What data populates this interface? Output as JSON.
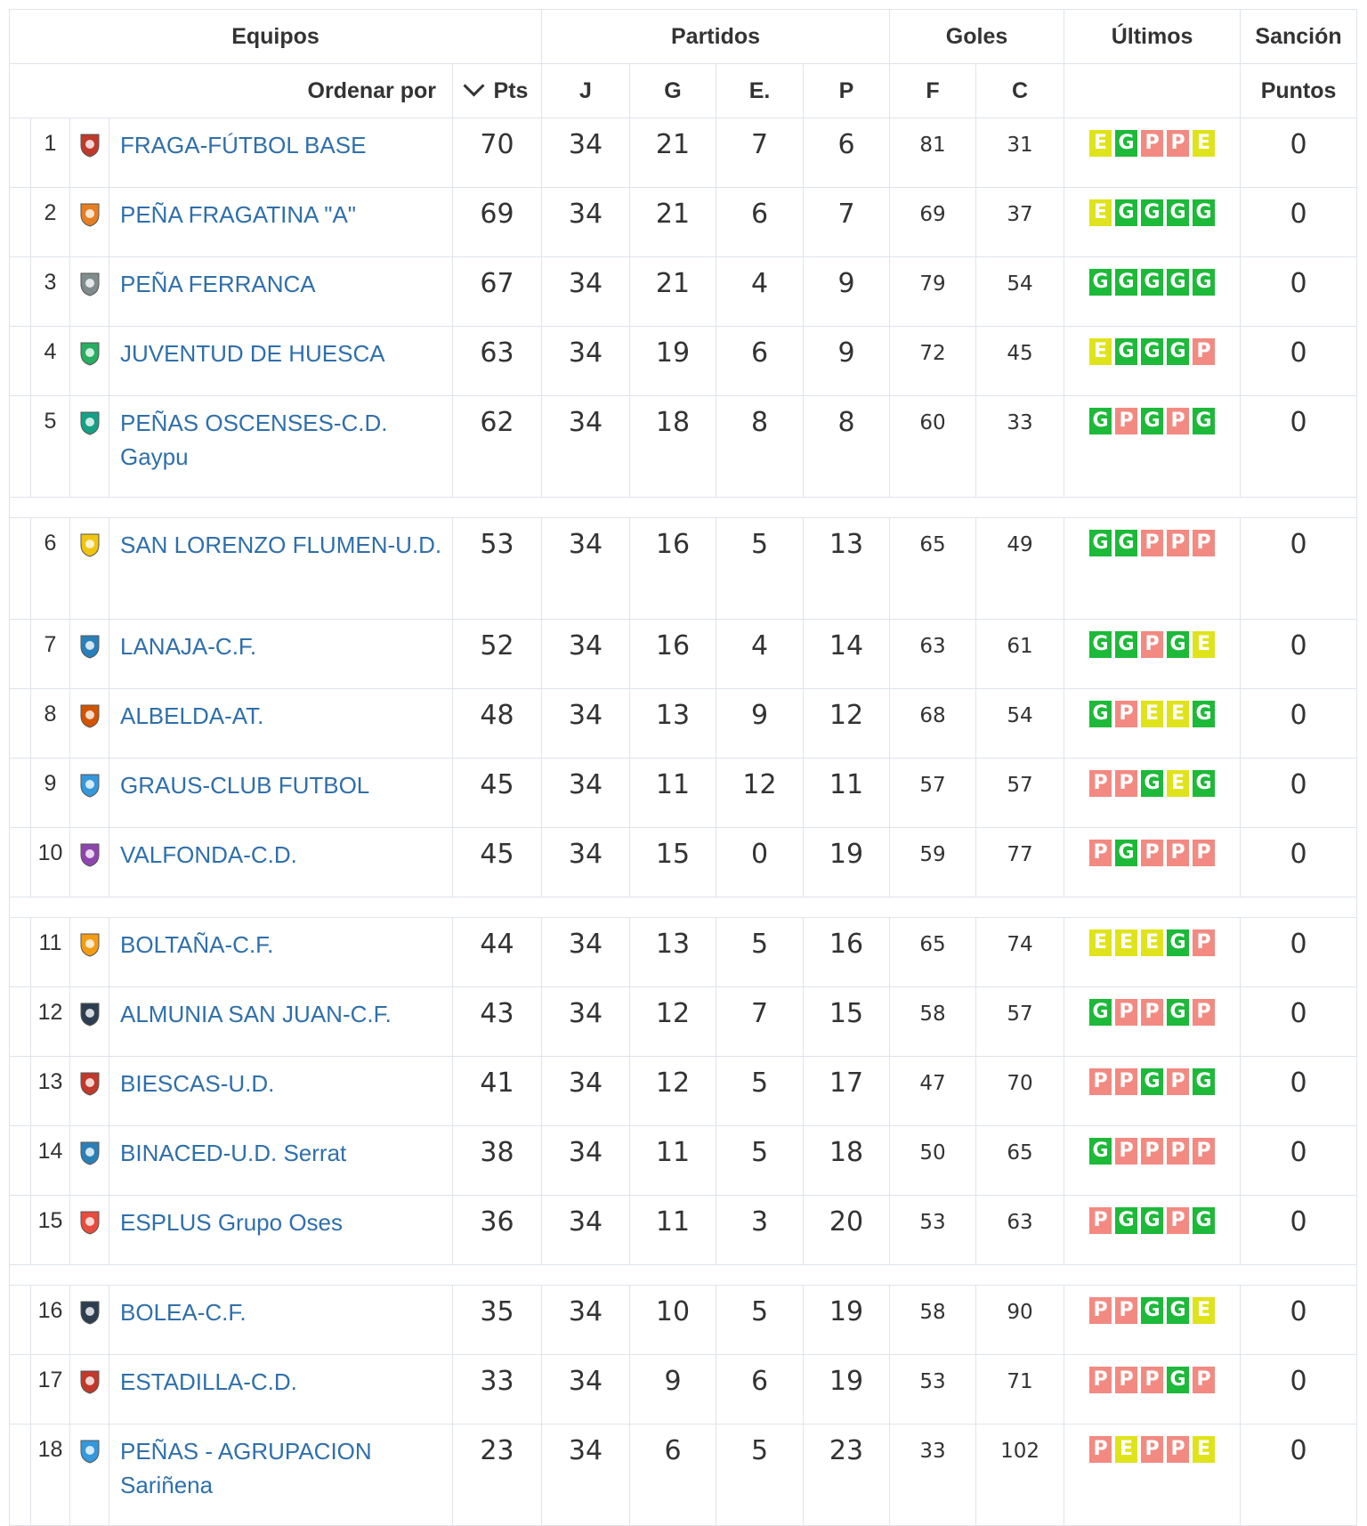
{
  "header": {
    "equipos": "Equipos",
    "partidos": "Partidos",
    "goles": "Goles",
    "ultimos": "Últimos",
    "sancion": "Sanción",
    "ordenar_por": "Ordenar por",
    "pts": "Pts",
    "j": "J",
    "g": "G",
    "e": "E.",
    "p": "P",
    "f": "F",
    "c": "C",
    "puntos": "Puntos"
  },
  "colors": {
    "win": "#1db939",
    "loss": "#f28a82",
    "draw": "#dfe31b",
    "link": "#2f6fab"
  },
  "teams": [
    {
      "rank": "1",
      "name": "FRAGA-FÚTBOL BASE",
      "pts": "70",
      "j": "34",
      "g": "21",
      "e": "7",
      "p": "6",
      "f": "81",
      "c": "31",
      "last": [
        "E",
        "G",
        "P",
        "P",
        "E"
      ],
      "sancion": "0",
      "crest": "fraga-crest-icon"
    },
    {
      "rank": "2",
      "name": "PEÑA FRAGATINA \"A\"",
      "pts": "69",
      "j": "34",
      "g": "21",
      "e": "6",
      "p": "7",
      "f": "69",
      "c": "37",
      "last": [
        "E",
        "G",
        "G",
        "G",
        "G"
      ],
      "sancion": "0",
      "crest": "fragatina-crest-icon"
    },
    {
      "rank": "3",
      "name": "PEÑA FERRANCA",
      "pts": "67",
      "j": "34",
      "g": "21",
      "e": "4",
      "p": "9",
      "f": "79",
      "c": "54",
      "last": [
        "G",
        "G",
        "G",
        "G",
        "G"
      ],
      "sancion": "0",
      "crest": "ferranca-crest-icon"
    },
    {
      "rank": "4",
      "name": "JUVENTUD DE HUESCA",
      "pts": "63",
      "j": "34",
      "g": "19",
      "e": "6",
      "p": "9",
      "f": "72",
      "c": "45",
      "last": [
        "E",
        "G",
        "G",
        "G",
        "P"
      ],
      "sancion": "0",
      "crest": "juventud-crest-icon"
    },
    {
      "rank": "5",
      "name": "PEÑAS OSCENSES-C.D. Gaypu",
      "pts": "62",
      "j": "34",
      "g": "18",
      "e": "8",
      "p": "8",
      "f": "60",
      "c": "33",
      "last": [
        "G",
        "P",
        "G",
        "P",
        "G"
      ],
      "sancion": "0",
      "crest": "oscenses-crest-icon"
    },
    {
      "rank": "6",
      "name": "SAN LORENZO FLUMEN-U.D.",
      "pts": "53",
      "j": "34",
      "g": "16",
      "e": "5",
      "p": "13",
      "f": "65",
      "c": "49",
      "last": [
        "G",
        "G",
        "P",
        "P",
        "P"
      ],
      "sancion": "0",
      "crest": "sanlorenzo-crest-icon"
    },
    {
      "rank": "7",
      "name": "LANAJA-C.F.",
      "pts": "52",
      "j": "34",
      "g": "16",
      "e": "4",
      "p": "14",
      "f": "63",
      "c": "61",
      "last": [
        "G",
        "G",
        "P",
        "G",
        "E"
      ],
      "sancion": "0",
      "crest": "lanaja-crest-icon"
    },
    {
      "rank": "8",
      "name": "ALBELDA-AT.",
      "pts": "48",
      "j": "34",
      "g": "13",
      "e": "9",
      "p": "12",
      "f": "68",
      "c": "54",
      "last": [
        "G",
        "P",
        "E",
        "E",
        "G"
      ],
      "sancion": "0",
      "crest": "albelda-crest-icon"
    },
    {
      "rank": "9",
      "name": "GRAUS-CLUB FUTBOL",
      "pts": "45",
      "j": "34",
      "g": "11",
      "e": "12",
      "p": "11",
      "f": "57",
      "c": "57",
      "last": [
        "P",
        "P",
        "G",
        "E",
        "G"
      ],
      "sancion": "0",
      "crest": "graus-crest-icon"
    },
    {
      "rank": "10",
      "name": "VALFONDA-C.D.",
      "pts": "45",
      "j": "34",
      "g": "15",
      "e": "0",
      "p": "19",
      "f": "59",
      "c": "77",
      "last": [
        "P",
        "G",
        "P",
        "P",
        "P"
      ],
      "sancion": "0",
      "crest": "valfonda-crest-icon"
    },
    {
      "rank": "11",
      "name": "BOLTAÑA-C.F.",
      "pts": "44",
      "j": "34",
      "g": "13",
      "e": "5",
      "p": "16",
      "f": "65",
      "c": "74",
      "last": [
        "E",
        "E",
        "E",
        "G",
        "P"
      ],
      "sancion": "0",
      "crest": "boltana-crest-icon"
    },
    {
      "rank": "12",
      "name": "ALMUNIA SAN JUAN-C.F.",
      "pts": "43",
      "j": "34",
      "g": "12",
      "e": "7",
      "p": "15",
      "f": "58",
      "c": "57",
      "last": [
        "G",
        "P",
        "P",
        "G",
        "P"
      ],
      "sancion": "0",
      "crest": "almunia-crest-icon"
    },
    {
      "rank": "13",
      "name": "BIESCAS-U.D.",
      "pts": "41",
      "j": "34",
      "g": "12",
      "e": "5",
      "p": "17",
      "f": "47",
      "c": "70",
      "last": [
        "P",
        "P",
        "G",
        "P",
        "G"
      ],
      "sancion": "0",
      "crest": "biescas-crest-icon"
    },
    {
      "rank": "14",
      "name": "BINACED-U.D. Serrat",
      "pts": "38",
      "j": "34",
      "g": "11",
      "e": "5",
      "p": "18",
      "f": "50",
      "c": "65",
      "last": [
        "G",
        "P",
        "P",
        "P",
        "P"
      ],
      "sancion": "0",
      "crest": "binaced-crest-icon"
    },
    {
      "rank": "15",
      "name": "ESPLUS Grupo Oses",
      "pts": "36",
      "j": "34",
      "g": "11",
      "e": "3",
      "p": "20",
      "f": "53",
      "c": "63",
      "last": [
        "P",
        "G",
        "G",
        "P",
        "G"
      ],
      "sancion": "0",
      "crest": "esplus-crest-icon"
    },
    {
      "rank": "16",
      "name": "BOLEA-C.F.",
      "pts": "35",
      "j": "34",
      "g": "10",
      "e": "5",
      "p": "19",
      "f": "58",
      "c": "90",
      "last": [
        "P",
        "P",
        "G",
        "G",
        "E"
      ],
      "sancion": "0",
      "crest": "bolea-crest-icon"
    },
    {
      "rank": "17",
      "name": "ESTADILLA-C.D.",
      "pts": "33",
      "j": "34",
      "g": "9",
      "e": "6",
      "p": "19",
      "f": "53",
      "c": "71",
      "last": [
        "P",
        "P",
        "P",
        "G",
        "P"
      ],
      "sancion": "0",
      "crest": "estadilla-crest-icon"
    },
    {
      "rank": "18",
      "name": "PEÑAS - AGRUPACION Sariñena",
      "pts": "23",
      "j": "34",
      "g": "6",
      "e": "5",
      "p": "23",
      "f": "33",
      "c": "102",
      "last": [
        "P",
        "E",
        "P",
        "P",
        "E"
      ],
      "sancion": "0",
      "crest": "agrupacion-crest-icon"
    }
  ]
}
